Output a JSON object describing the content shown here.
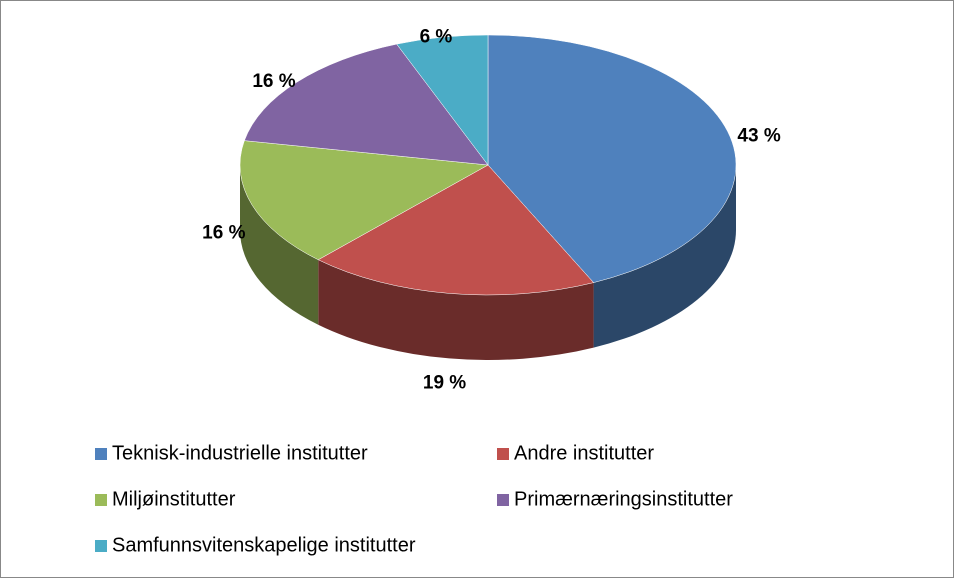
{
  "chart_data": {
    "type": "pie",
    "categories": [
      "Teknisk-industrielle institutter",
      "Andre institutter",
      "Miljøinstitutter",
      "Primærnæringsinstitutter",
      "Samfunnsvitenskapelige institutter"
    ],
    "values": [
      43,
      19,
      16,
      16,
      6
    ],
    "value_labels": [
      "43 %",
      "19 %",
      "16 %",
      "16 %",
      "6 %"
    ],
    "colors": [
      "#4f81bd",
      "#c0504d",
      "#9bbb59",
      "#8064a2",
      "#4bacc6"
    ],
    "legend": "bottom"
  }
}
